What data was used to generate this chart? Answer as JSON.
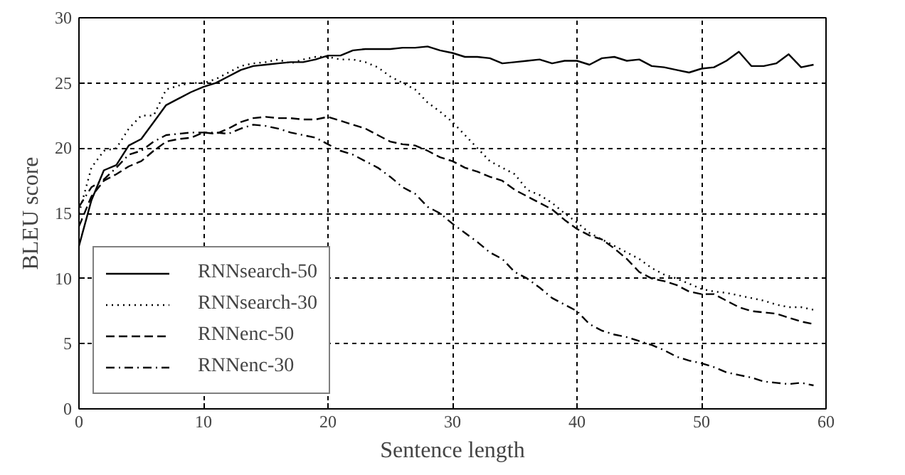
{
  "chart_data": {
    "type": "line",
    "xlabel": "Sentence length",
    "ylabel": "BLEU score",
    "x": [
      0,
      1,
      2,
      3,
      4,
      5,
      6,
      7,
      8,
      9,
      10,
      11,
      12,
      13,
      14,
      15,
      16,
      17,
      18,
      19,
      20,
      21,
      22,
      23,
      24,
      25,
      26,
      27,
      28,
      29,
      30,
      31,
      32,
      33,
      34,
      35,
      36,
      37,
      38,
      39,
      40,
      41,
      42,
      43,
      44,
      45,
      46,
      47,
      48,
      49,
      50,
      51,
      52,
      53,
      54,
      55,
      56,
      57,
      58,
      59
    ],
    "xlim": [
      0,
      60
    ],
    "xticks": [
      0,
      10,
      20,
      30,
      40,
      50,
      60
    ],
    "ylim": [
      0,
      30
    ],
    "yticks": [
      0,
      5,
      10,
      15,
      20,
      25,
      30
    ],
    "grid": true,
    "legend": "bottom left",
    "series": [
      {
        "name": "RNNsearch-50",
        "color": "#000000",
        "line_style": "solid",
        "values": [
          12.5,
          16,
          18.3,
          18.7,
          20.2,
          20.7,
          22,
          23.3,
          23.8,
          24.3,
          24.7,
          25,
          25.5,
          26,
          26.3,
          26.4,
          26.5,
          26.6,
          26.6,
          26.8,
          27.1,
          27.1,
          27.5,
          27.6,
          27.6,
          27.6,
          27.7,
          27.7,
          27.8,
          27.5,
          27.3,
          27.0,
          27.0,
          26.9,
          26.5,
          26.6,
          26.7,
          26.8,
          26.5,
          26.7,
          26.7,
          26.4,
          26.9,
          27.0,
          26.7,
          26.8,
          26.3,
          26.2,
          26.0,
          25.8,
          26.1,
          26.2,
          26.7,
          27.4,
          26.3,
          26.3,
          26.5,
          27.2,
          26.2,
          26.4
        ]
      },
      {
        "name": "RNNsearch-30",
        "color": "#000000",
        "line_style": "dotted",
        "values": [
          15,
          18.5,
          19.8,
          20,
          21.5,
          22.5,
          22.5,
          24.5,
          24.8,
          25,
          25,
          25.3,
          25.8,
          26.3,
          26.5,
          26.6,
          26.8,
          26.5,
          26.8,
          27,
          27,
          26.8,
          26.8,
          26.6,
          26.2,
          25.5,
          25,
          24.5,
          23.5,
          22.8,
          22,
          21,
          20,
          19,
          18.5,
          18,
          16.8,
          16.4,
          15.8,
          15,
          14.3,
          13.5,
          13,
          12.5,
          12,
          11.5,
          10.8,
          10.3,
          10,
          9.6,
          9.2,
          9.0,
          8.9,
          8.7,
          8.5,
          8.3,
          8.0,
          7.8,
          7.8,
          7.6
        ]
      },
      {
        "name": "RNNenc-50",
        "color": "#000000",
        "line_style": "dashed",
        "values": [
          14,
          16.3,
          17.5,
          18,
          18.6,
          19,
          19.8,
          20.5,
          20.7,
          20.8,
          21.2,
          21.1,
          21.5,
          22,
          22.3,
          22.4,
          22.3,
          22.3,
          22.2,
          22.2,
          22.4,
          22.1,
          21.8,
          21.5,
          21.0,
          20.5,
          20.3,
          20.2,
          19.8,
          19.3,
          19,
          18.5,
          18.2,
          17.8,
          17.5,
          16.8,
          16.3,
          15.8,
          15.3,
          14.5,
          13.8,
          13.3,
          13,
          12.3,
          11.5,
          10.5,
          10.0,
          9.8,
          9.5,
          9.0,
          8.8,
          8.8,
          8.3,
          7.8,
          7.5,
          7.4,
          7.3,
          7.0,
          6.7,
          6.5
        ]
      },
      {
        "name": "RNNenc-30",
        "color": "#000000",
        "line_style": "dashdot",
        "values": [
          15.5,
          17,
          17.6,
          18.5,
          19.5,
          19.8,
          20.5,
          21,
          21.1,
          21.2,
          21.2,
          21.2,
          21.1,
          21.5,
          21.8,
          21.7,
          21.5,
          21.2,
          21.0,
          20.8,
          20.3,
          19.8,
          19.5,
          19,
          18.5,
          17.8,
          17,
          16.5,
          15.5,
          15,
          14.2,
          13.5,
          12.8,
          12,
          11.5,
          10.5,
          10,
          9.3,
          8.5,
          8,
          7.5,
          6.5,
          6,
          5.7,
          5.5,
          5.2,
          4.9,
          4.5,
          4,
          3.7,
          3.5,
          3.2,
          2.8,
          2.6,
          2.4,
          2.1,
          2,
          1.9,
          2.0,
          1.8
        ]
      }
    ]
  }
}
